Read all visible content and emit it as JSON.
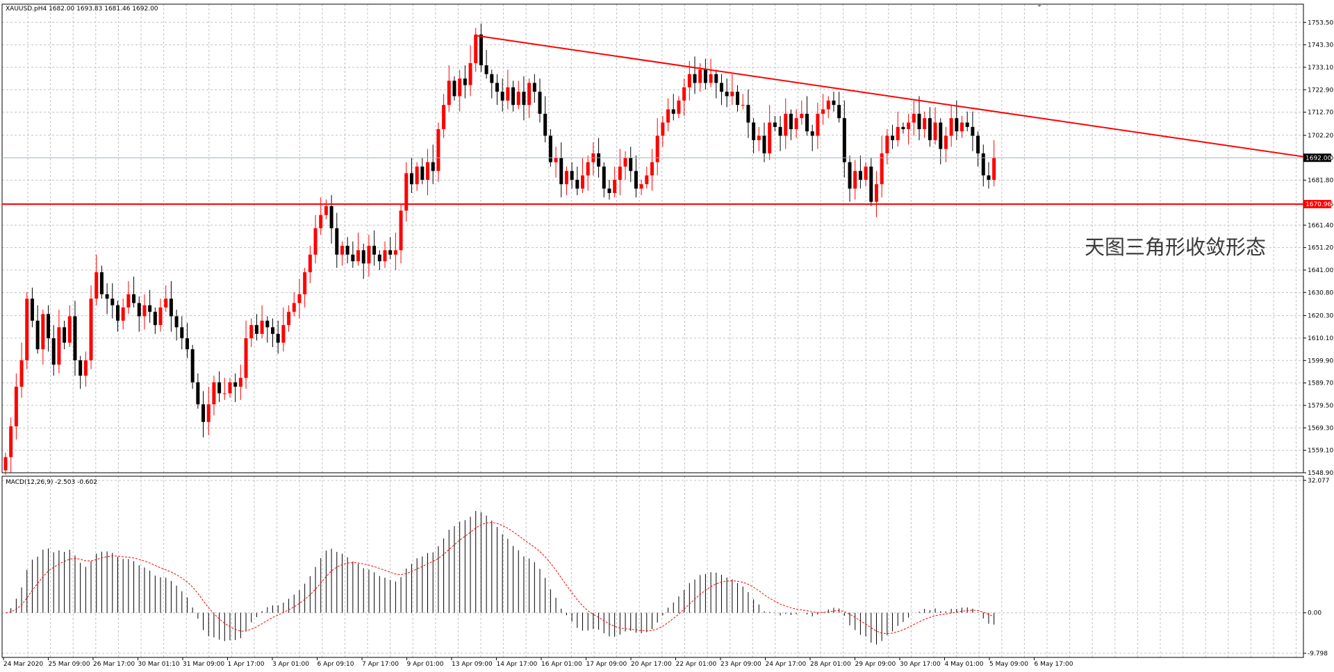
{
  "main_title": "XAUUSD.pH4  1682.00 1693.83 1681.46 1692.00",
  "macd_title": "MACD(12,26,9) -2.503 -0.602",
  "annotation": "天图三角形收敛形态",
  "current_price_label": "1692.00",
  "support_label": "1670.96",
  "colors": {
    "bull": "#ff0000",
    "bear": "#000000",
    "grid": "#c0c0c0",
    "line": "#ff0000",
    "signal": "#ff0000",
    "price_line": "#a0b0c0"
  },
  "chart_data": [
    {
      "type": "candlestick",
      "symbol": "XAUUSD.p",
      "timeframe": "H4",
      "ylim": [
        1548.9,
        1758.0
      ],
      "y_ticks": [
        "1753.50",
        "1743.30",
        "1733.10",
        "1722.90",
        "1712.70",
        "1702.20",
        "1692.00",
        "1681.80",
        "1670.96",
        "1661.40",
        "1651.20",
        "1641.00",
        "1630.80",
        "1620.30",
        "1610.10",
        "1599.90",
        "1589.70",
        "1579.50",
        "1569.30",
        "1559.10",
        "1548.90"
      ],
      "x_ticks": [
        "24 Mar 2020",
        "25 Mar 09:00",
        "26 Mar 17:00",
        "30 Mar 01:10",
        "31 Mar 09:00",
        "1 Apr 17:00",
        "3 Apr 01:00",
        "6 Apr 09:10",
        "7 Apr 17:00",
        "9 Apr 01:00",
        "13 Apr 09:00",
        "14 Apr 17:00",
        "16 Apr 01:00",
        "17 Apr 09:00",
        "20 Apr 17:00",
        "22 Apr 01:00",
        "23 Apr 09:00",
        "24 Apr 17:00",
        "28 Apr 01:00",
        "29 Apr 09:00",
        "30 Apr 17:00",
        "4 May 01:00",
        "5 May 09:00",
        "6 May 17:00"
      ],
      "closes": [
        1556,
        1570,
        1588,
        1600,
        1628,
        1618,
        1605,
        1621,
        1610,
        1598,
        1615,
        1608,
        1620,
        1600,
        1593,
        1600,
        1628,
        1640,
        1630,
        1628,
        1625,
        1618,
        1624,
        1630,
        1626,
        1620,
        1625,
        1622,
        1616,
        1624,
        1628,
        1620,
        1615,
        1610,
        1605,
        1590,
        1580,
        1572,
        1580,
        1590,
        1585,
        1585,
        1590,
        1588,
        1592,
        1610,
        1616,
        1612,
        1618,
        1615,
        1612,
        1608,
        1616,
        1622,
        1626,
        1630,
        1640,
        1648,
        1660,
        1666,
        1670,
        1660,
        1648,
        1652,
        1648,
        1645,
        1650,
        1644,
        1652,
        1648,
        1645,
        1650,
        1648,
        1650,
        1668,
        1685,
        1680,
        1688,
        1682,
        1690,
        1686,
        1705,
        1716,
        1727,
        1720,
        1728,
        1725,
        1735,
        1748,
        1734,
        1730,
        1726,
        1722,
        1718,
        1724,
        1716,
        1722,
        1716,
        1726,
        1722,
        1712,
        1702,
        1690,
        1692,
        1680,
        1686,
        1682,
        1678,
        1684,
        1690,
        1694,
        1688,
        1678,
        1676,
        1682,
        1688,
        1692,
        1686,
        1678,
        1680,
        1684,
        1690,
        1702,
        1708,
        1714,
        1712,
        1718,
        1724,
        1730,
        1726,
        1732,
        1726,
        1730,
        1726,
        1722,
        1720,
        1722,
        1716,
        1716,
        1708,
        1700,
        1702,
        1694,
        1708,
        1706,
        1702,
        1712,
        1705,
        1710,
        1712,
        1704,
        1702,
        1712,
        1714,
        1718,
        1716,
        1710,
        1690,
        1678,
        1686,
        1682,
        1688,
        1672,
        1680,
        1694,
        1702,
        1700,
        1706,
        1705,
        1708,
        1712,
        1705,
        1710,
        1700,
        1708,
        1696,
        1702,
        1710,
        1704,
        1708,
        1706,
        1702,
        1694,
        1684,
        1682,
        1692
      ],
      "trend_line": {
        "from_price": 1747.5,
        "to_price": 1692.5
      },
      "support_price": 1670.96,
      "current_price": 1692.0
    },
    {
      "type": "macd",
      "params": "12,26,9",
      "ylim": [
        -9.798,
        32.077
      ],
      "y_ticks": [
        "32.077",
        "0.00",
        "-9.798"
      ],
      "note": "histogram and signal computed from closes"
    }
  ]
}
